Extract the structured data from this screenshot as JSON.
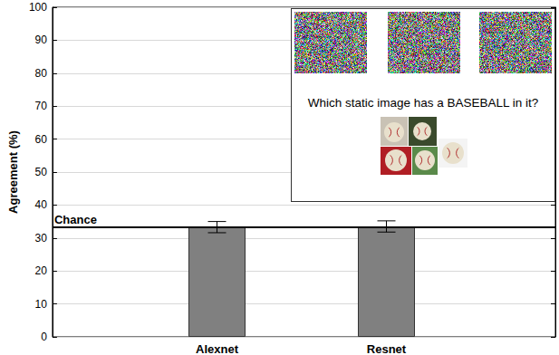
{
  "chart_data": {
    "type": "bar",
    "ylabel": "Agreement (%)",
    "categories": [
      "Alexnet",
      "Resnet"
    ],
    "values": [
      33.3,
      33.5
    ],
    "errors": [
      1.7,
      1.7
    ],
    "color": "#808080",
    "ylim": [
      0,
      100
    ],
    "yticks": [
      0,
      10,
      20,
      30,
      40,
      50,
      60,
      70,
      80,
      90,
      100
    ],
    "grid": true,
    "annotations": [
      {
        "text": "Chance",
        "y": 33.3
      }
    ],
    "inset_text": "Which static image has a BASEBALL in it?"
  }
}
